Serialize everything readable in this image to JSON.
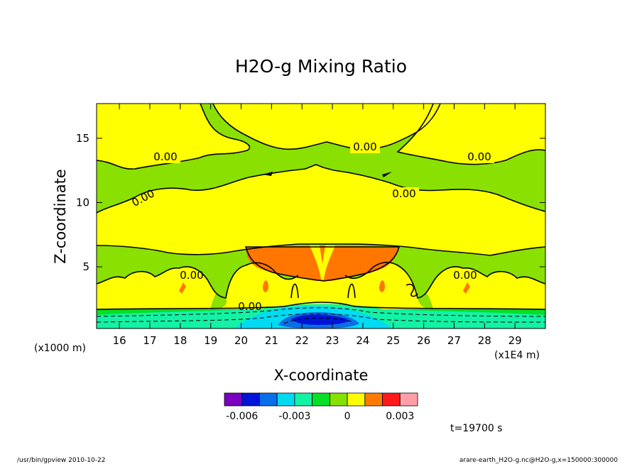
{
  "chart_data": {
    "type": "heatmap",
    "title": "H2O-g Mixing Ratio",
    "xlabel": "X-coordinate",
    "ylabel": "Z-coordinate",
    "x_unit_label": "(x1E4 m)",
    "y_unit_label": "(x1000 m)",
    "xlim": [
      15.25,
      30
    ],
    "ylim": [
      0.2,
      17.7
    ],
    "x_ticks": [
      "16",
      "17",
      "18",
      "19",
      "20",
      "21",
      "22",
      "23",
      "24",
      "25",
      "26",
      "27",
      "28",
      "29"
    ],
    "y_ticks": [
      "5",
      "10",
      "15"
    ],
    "contour_label": "0.00",
    "colorbar": {
      "levels": [
        -0.007,
        -0.006,
        -0.005,
        -0.004,
        -0.003,
        -0.002,
        -0.001,
        0,
        0.001,
        0.002,
        0.003,
        0.004
      ],
      "colors": [
        "#7b00bd",
        "#0014d8",
        "#0a6ee6",
        "#00d9f0",
        "#13f2a5",
        "#07de27",
        "#86e000",
        "#ffff00",
        "#ff7b00",
        "#ff1a1a",
        "#ff9fa5"
      ],
      "tick_labels": [
        "-0.006",
        "-0.003",
        "0",
        "0.003"
      ]
    },
    "palette": {
      "green": "#8ae000",
      "yellow": "#ffff00",
      "orange": "#ff7700",
      "green2": "#07de27",
      "mint": "#13f2a5",
      "cyan": "#00dbf2",
      "blue": "#0a6ee6",
      "navy": "#0014d8"
    },
    "time_label": "t=19700 s"
  },
  "footer": {
    "left": "/usr/bin/gpview   2010-10-22",
    "right": "arare-earth_H2O-g.nc@H2O-g,x=150000:300000"
  }
}
